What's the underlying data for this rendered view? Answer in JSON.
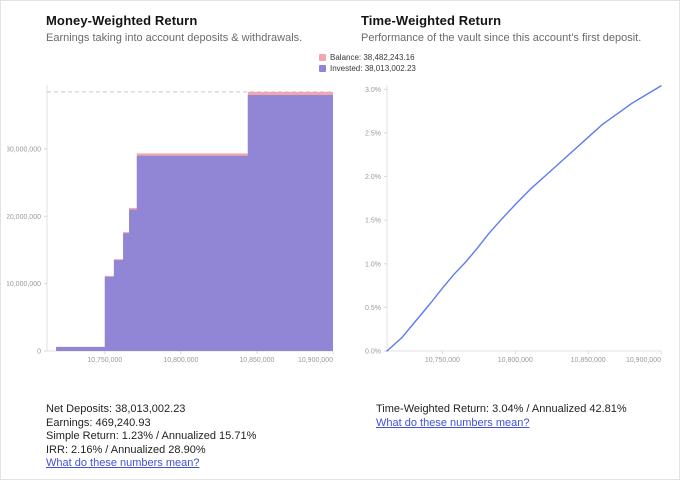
{
  "left_panel": {
    "title": "Money-Weighted Return",
    "subtitle": "Earnings taking into account deposits & withdrawals.",
    "legend": [
      {
        "label": "Balance: 38,482,243.16",
        "color": "#f2a6ae"
      },
      {
        "label": "Invested: 38,013,002.23",
        "color": "#9185d6"
      }
    ],
    "stats": [
      "Net Deposits: 38,013,002.23",
      "Earnings: 469,240.93",
      "Simple Return: 1.23% / Annualized 15.71%",
      "IRR: 2.16% / Annualized 28.90%"
    ],
    "link": "What do these numbers mean?"
  },
  "right_panel": {
    "title": "Time-Weighted Return",
    "subtitle": "Performance of the vault since this account's first deposit.",
    "stats": [
      "Time-Weighted Return: 3.04% / Annualized 42.81%"
    ],
    "link": "What do these numbers mean?"
  },
  "chart_data": [
    {
      "type": "area",
      "title": "Money-Weighted Return",
      "xlabel": "",
      "ylabel": "",
      "xlim": [
        10712000,
        10900000
      ],
      "ylim": [
        0,
        39500000
      ],
      "grid": false,
      "legend_position": "top-right-of-panel",
      "dashed_max": 38482243.16,
      "x_ticks": [
        {
          "x": 10750000,
          "label": "10,750,000"
        },
        {
          "x": 10800000,
          "label": "10,800,000"
        },
        {
          "x": 10850000,
          "label": "10,850,000"
        },
        {
          "x": 10900000,
          "label": "10,900,000"
        }
      ],
      "y_ticks": [
        {
          "y": 0,
          "label": "0"
        },
        {
          "y": 10000000,
          "label": "10,000,000"
        },
        {
          "y": 20000000,
          "label": "20,000,000"
        },
        {
          "y": 30000000,
          "label": "30,000,000"
        }
      ],
      "series": [
        {
          "name": "Balance: 38,482,243.16",
          "color": "#f2a6ae",
          "steps": [
            [
              10712000,
              0
            ],
            [
              10718000,
              620000
            ],
            [
              10750000,
              11150000
            ],
            [
              10756000,
              13650000
            ],
            [
              10762000,
              17650000
            ],
            [
              10766000,
              21250000
            ],
            [
              10771000,
              29350000
            ],
            [
              10844000,
              38482243.16
            ],
            [
              10900000,
              38482243.16
            ]
          ]
        },
        {
          "name": "Invested: 38,013,002.23",
          "color": "#9185d6",
          "steps": [
            [
              10712000,
              0
            ],
            [
              10718000,
              600000
            ],
            [
              10750000,
              11000000
            ],
            [
              10756000,
              13500000
            ],
            [
              10762000,
              17500000
            ],
            [
              10766000,
              21000000
            ],
            [
              10771000,
              29000000
            ],
            [
              10844000,
              38013002.23
            ],
            [
              10900000,
              38013002.23
            ]
          ]
        }
      ]
    },
    {
      "type": "line",
      "title": "Time-Weighted Return",
      "xlabel": "",
      "ylabel": "",
      "xlim": [
        10712000,
        10900000
      ],
      "ylim": [
        0,
        3.05
      ],
      "grid": false,
      "x_ticks": [
        {
          "x": 10750000,
          "label": "10,750,000"
        },
        {
          "x": 10800000,
          "label": "10,800,000"
        },
        {
          "x": 10850000,
          "label": "10,850,000"
        },
        {
          "x": 10900000,
          "label": "10,900,000"
        }
      ],
      "y_ticks": [
        {
          "y": 0,
          "label": "0.0%"
        },
        {
          "y": 0.5,
          "label": "0.5%"
        },
        {
          "y": 1.0,
          "label": "1.0%"
        },
        {
          "y": 1.5,
          "label": "1.5%"
        },
        {
          "y": 2.0,
          "label": "2.0%"
        },
        {
          "y": 2.5,
          "label": "2.5%"
        },
        {
          "y": 3.0,
          "label": "3.0%"
        }
      ],
      "series": [
        {
          "name": "Time-Weighted Return",
          "color": "#5b7cf0",
          "points": [
            [
              10712000,
              0.0
            ],
            [
              10722000,
              0.15
            ],
            [
              10732000,
              0.35
            ],
            [
              10742000,
              0.55
            ],
            [
              10750000,
              0.72
            ],
            [
              10758000,
              0.88
            ],
            [
              10766000,
              1.02
            ],
            [
              10774000,
              1.18
            ],
            [
              10782000,
              1.35
            ],
            [
              10790000,
              1.5
            ],
            [
              10800000,
              1.68
            ],
            [
              10810000,
              1.85
            ],
            [
              10820000,
              2.0
            ],
            [
              10830000,
              2.15
            ],
            [
              10840000,
              2.3
            ],
            [
              10850000,
              2.45
            ],
            [
              10860000,
              2.6
            ],
            [
              10870000,
              2.72
            ],
            [
              10880000,
              2.84
            ],
            [
              10890000,
              2.94
            ],
            [
              10900000,
              3.04
            ]
          ]
        }
      ]
    }
  ]
}
